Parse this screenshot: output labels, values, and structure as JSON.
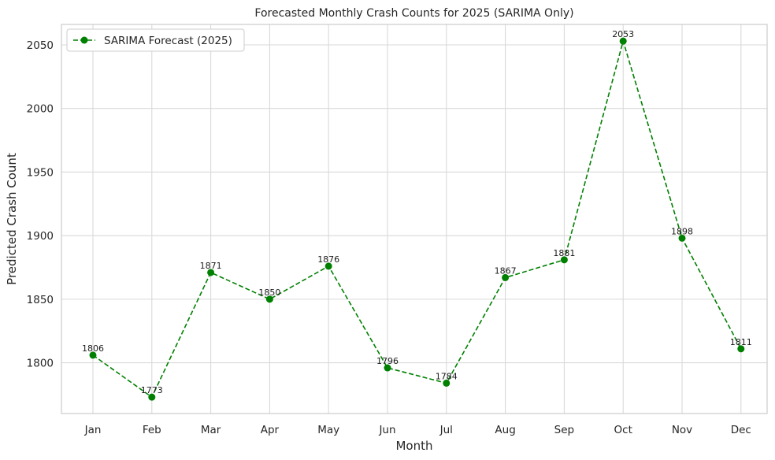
{
  "chart_data": {
    "type": "line",
    "title": "Forecasted Monthly Crash Counts for 2025 (SARIMA Only)",
    "xlabel": "Month",
    "ylabel": "Predicted Crash Count",
    "categories": [
      "Jan",
      "Feb",
      "Mar",
      "Apr",
      "May",
      "Jun",
      "Jul",
      "Aug",
      "Sep",
      "Oct",
      "Nov",
      "Dec"
    ],
    "series": [
      {
        "name": "SARIMA Forecast (2025)",
        "values": [
          1806,
          1773,
          1871,
          1850,
          1876,
          1796,
          1784,
          1867,
          1881,
          2053,
          1898,
          1811
        ],
        "color": "#008000",
        "line_style": "dashed",
        "marker": "circle"
      }
    ],
    "data_labels": [
      "1806",
      "1773",
      "1871",
      "1850",
      "1876",
      "1796",
      "1784",
      "1867",
      "1881",
      "2053",
      "1898",
      "1811"
    ],
    "yticks": [
      1800,
      1850,
      1900,
      1950,
      2000,
      2050
    ],
    "ylim": [
      1760.1,
      2066.1
    ],
    "grid": true,
    "legend_position": "upper-left"
  }
}
